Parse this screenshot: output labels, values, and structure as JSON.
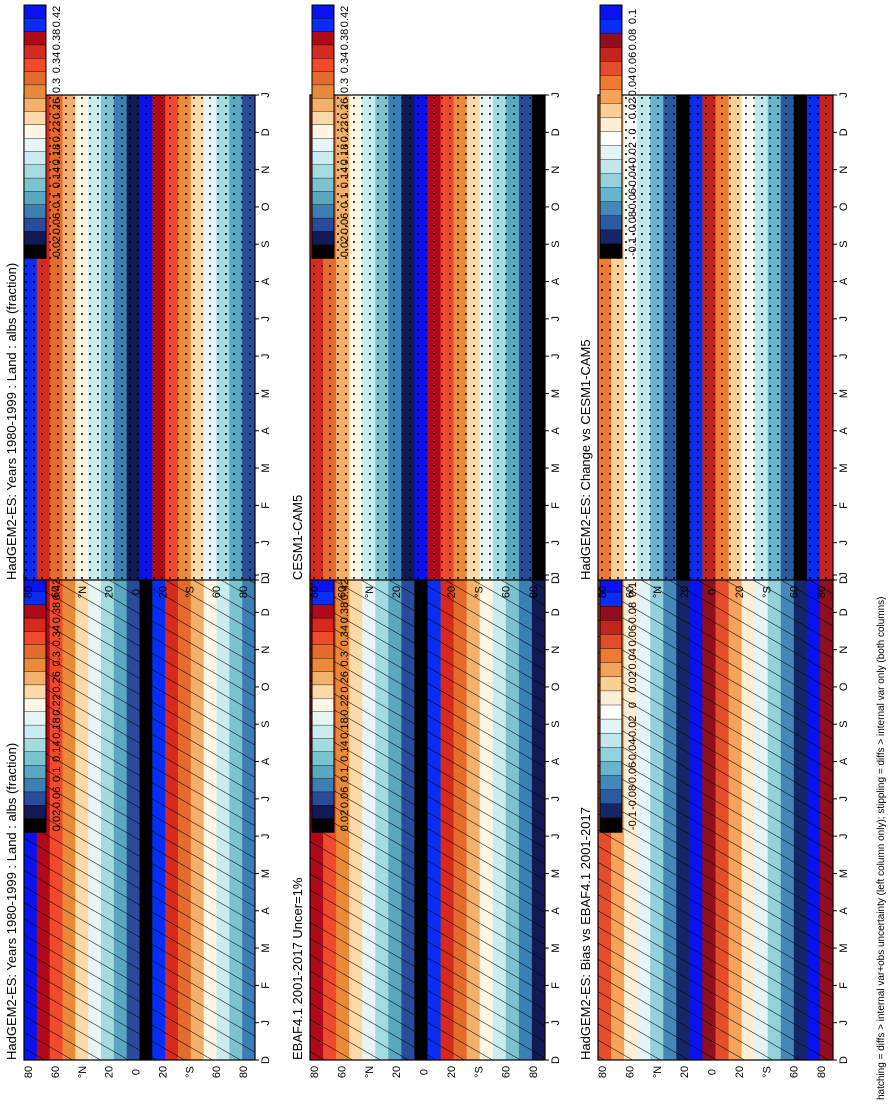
{
  "figure": {
    "footnote": "hatching = diffs > internal var+obs uncertainty (left column only); stippling = diffs > internal var only (both columns)"
  },
  "months": [
    "J",
    "F",
    "M",
    "A",
    "M",
    "J",
    "J",
    "A",
    "S",
    "O",
    "N",
    "D",
    "J"
  ],
  "lat_ticks": [
    "80",
    "60",
    "°N",
    "20",
    "0",
    "20",
    "°S",
    "60",
    "80"
  ],
  "colors": {
    "climatology": [
      "#0a12f0",
      "#0a2df5",
      "#b00a1a",
      "#d62a1f",
      "#ef4a2b",
      "#e36b2c",
      "#e88a3a",
      "#f2b06a",
      "#fbd9a8",
      "#fff6e5",
      "#e6f6f7",
      "#c8ecef",
      "#a3dbe0",
      "#7cc3cf",
      "#5aa7c2",
      "#3b7fb5",
      "#2a4a9a",
      "#121a55",
      "#000000"
    ],
    "difference": [
      "#0a12f0",
      "#0a2df5",
      "#8f0f1f",
      "#c4241e",
      "#e34d2c",
      "#ee7a34",
      "#f5a25a",
      "#fbcf95",
      "#ffeed6",
      "#ffffff",
      "#e4f5f7",
      "#bfe7ec",
      "#93d1dc",
      "#67b4cc",
      "#4487b8",
      "#2c5aa0",
      "#142666",
      "#000000"
    ]
  },
  "chart_data": [
    {
      "type": "heatmap",
      "title": "HadGEM2-ES: Years 1980-1999 : Land : albs (fraction)",
      "x": [
        "D",
        "J",
        "F",
        "M",
        "A",
        "M",
        "J",
        "J",
        "A",
        "S",
        "O",
        "N",
        "D",
        "J"
      ],
      "y": [
        "80",
        "60",
        "°N",
        "20",
        "0",
        "20",
        "°S",
        "60",
        "80"
      ],
      "overlay": "hatching",
      "colorbar": [
        "0.42",
        "0.38",
        "0.34",
        "0.3",
        "0.26",
        "0.22",
        "0.18",
        "0.14",
        "0.1",
        "0.06",
        "0.02"
      ]
    },
    {
      "type": "heatmap",
      "title": "HadGEM2-ES: Years 1980-1999 : Land : albs (fraction)",
      "x": [
        "D",
        "J",
        "F",
        "M",
        "A",
        "M",
        "J",
        "J",
        "A",
        "S",
        "O",
        "N",
        "D",
        "J"
      ],
      "y": [
        "80",
        "60",
        "°N",
        "20",
        "0",
        "20",
        "°S",
        "60",
        "80"
      ],
      "overlay": "stippling",
      "colorbar": [
        "0.42",
        "0.38",
        "0.34",
        "0.3",
        "0.26",
        "0.22",
        "0.18",
        "0.14",
        "0.1",
        "0.06",
        "0.02"
      ]
    },
    {
      "type": "heatmap",
      "title": "EBAF4.1 2001-2017 Uncer=1%",
      "x": [
        "D",
        "J",
        "F",
        "M",
        "A",
        "M",
        "J",
        "J",
        "A",
        "S",
        "O",
        "N",
        "D",
        "J"
      ],
      "y": [
        "80",
        "60",
        "°N",
        "20",
        "0",
        "20",
        "°S",
        "60",
        "80"
      ],
      "overlay": "hatching",
      "colorbar": [
        "0.42",
        "0.38",
        "0.34",
        "0.3",
        "0.26",
        "0.22",
        "0.18",
        "0.14",
        "0.1",
        "0.06",
        "0.02"
      ]
    },
    {
      "type": "heatmap",
      "title": "CESM1-CAM5",
      "x": [
        "D",
        "J",
        "F",
        "M",
        "A",
        "M",
        "J",
        "J",
        "A",
        "S",
        "O",
        "N",
        "D",
        "J"
      ],
      "y": [
        "80",
        "60",
        "°N",
        "20",
        "0",
        "20",
        "°S",
        "60",
        "80"
      ],
      "overlay": "stippling",
      "colorbar": [
        "0.42",
        "0.38",
        "0.34",
        "0.3",
        "0.26",
        "0.22",
        "0.18",
        "0.14",
        "0.1",
        "0.06",
        "0.02"
      ]
    },
    {
      "type": "heatmap",
      "title": "HadGEM2-ES: Bias vs EBAF4.1 2001-2017",
      "x": [
        "D",
        "J",
        "F",
        "M",
        "A",
        "M",
        "J",
        "J",
        "A",
        "S",
        "O",
        "N",
        "D",
        "J"
      ],
      "y": [
        "80",
        "60",
        "°N",
        "20",
        "0",
        "20",
        "°S",
        "60",
        "80"
      ],
      "overlay": "hatching",
      "colorbar": [
        "0.1",
        "0.08",
        "0.06",
        "0.04",
        "0.02",
        "0",
        "-0.02",
        "-0.04",
        "-0.06",
        "-0.08",
        "-0.1"
      ]
    },
    {
      "type": "heatmap",
      "title": "HadGEM2-ES: Change vs CESM1-CAM5",
      "x": [
        "D",
        "J",
        "F",
        "M",
        "A",
        "M",
        "J",
        "J",
        "A",
        "S",
        "O",
        "N",
        "D",
        "J"
      ],
      "y": [
        "80",
        "60",
        "°N",
        "20",
        "0",
        "20",
        "°S",
        "60",
        "80"
      ],
      "overlay": "stippling",
      "colorbar": [
        "0.1",
        "0.08",
        "0.06",
        "0.04",
        "0.02",
        "0",
        "-0.02",
        "-0.04",
        "-0.06",
        "-0.08",
        "-0.1"
      ]
    }
  ]
}
